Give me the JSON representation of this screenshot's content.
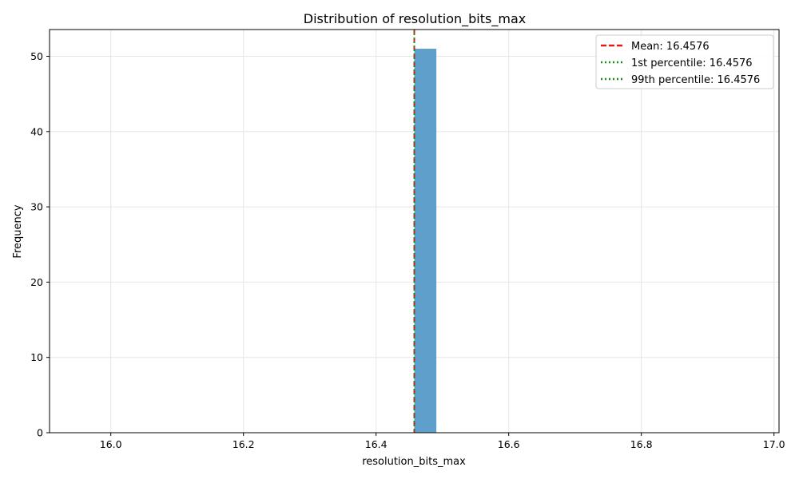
{
  "chart_data": {
    "type": "bar",
    "title": "Distribution of resolution_bits_max",
    "xlabel": "resolution_bits_max",
    "ylabel": "Frequency",
    "xlim": [
      15.9076,
      17.0076
    ],
    "ylim": [
      0,
      53.55
    ],
    "xticks": [
      16.0,
      16.2,
      16.4,
      16.6,
      16.8,
      17.0
    ],
    "xtick_labels": [
      "16.0",
      "16.2",
      "16.4",
      "16.6",
      "16.8",
      "17.0"
    ],
    "yticks": [
      0,
      10,
      20,
      30,
      40,
      50
    ],
    "ytick_labels": [
      "0",
      "10",
      "20",
      "30",
      "40",
      "50"
    ],
    "grid": true,
    "bins": [
      {
        "x0": 16.4576,
        "x1": 16.4909,
        "count": 51
      }
    ],
    "bar_color": "#5f9fcb",
    "reference_lines": [
      {
        "label": "Mean: 16.4576",
        "x": 16.4576,
        "color": "#e31a1c",
        "style": "dashed"
      },
      {
        "label": "1st percentile: 16.4576",
        "x": 16.4576,
        "color": "#1a8a1a",
        "style": "dotted"
      },
      {
        "label": "99th percentile: 16.4576",
        "x": 16.4576,
        "color": "#1a8a1a",
        "style": "dotted"
      }
    ],
    "legend_position": "top-right"
  }
}
